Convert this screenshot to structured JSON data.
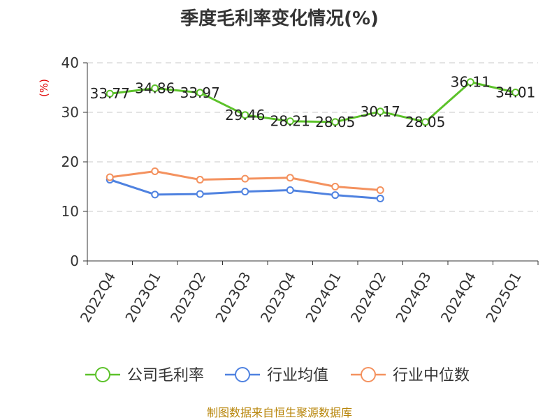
{
  "title": "季度毛利率变化情况(%)",
  "source": "制图数据来自恒生聚源数据库",
  "colors": {
    "company": "#5cc22a",
    "industry_avg": "#4f82e0",
    "industry_median": "#f4925f"
  },
  "chart_data": {
    "type": "line",
    "title": "季度毛利率变化情况(%)",
    "xlabel": "",
    "ylabel": "(%)",
    "ylim": [
      0,
      40
    ],
    "yticks": [
      0,
      10,
      20,
      30,
      40
    ],
    "grid": true,
    "legend": "bottom",
    "categories": [
      "2022Q4",
      "2023Q1",
      "2023Q2",
      "2023Q3",
      "2023Q4",
      "2024Q1",
      "2024Q2",
      "2024Q3",
      "2024Q4",
      "2025Q1"
    ],
    "series": [
      {
        "name": "公司毛利率",
        "color": "#5cc22a",
        "show_labels": true,
        "values": [
          33.77,
          34.86,
          33.97,
          29.46,
          28.21,
          28.05,
          30.17,
          28.05,
          36.11,
          34.01
        ]
      },
      {
        "name": "行业均值",
        "color": "#4f82e0",
        "show_labels": false,
        "values": [
          16.4,
          13.4,
          13.5,
          14.0,
          14.3,
          13.3,
          12.6,
          null,
          null,
          null
        ]
      },
      {
        "name": "行业中位数",
        "color": "#f4925f",
        "show_labels": false,
        "values": [
          16.9,
          18.1,
          16.4,
          16.6,
          16.8,
          15.0,
          14.3,
          null,
          null,
          null
        ]
      }
    ]
  }
}
